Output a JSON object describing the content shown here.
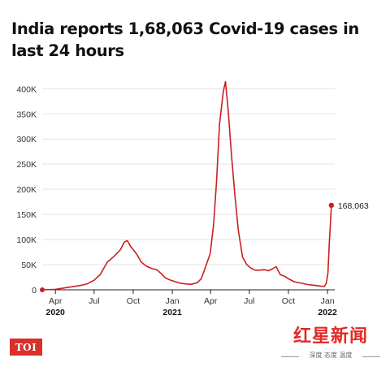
{
  "header": {
    "title": "India reports 1,68,063 Covid-19 cases in last 24 hours"
  },
  "chart_data": {
    "type": "line",
    "title": "India reports 1,68,063 Covid-19 cases in last 24 hours",
    "xlabel": "",
    "ylabel": "",
    "x_ticks": [
      {
        "label": "Apr",
        "year": "2020",
        "date": "2020-04-01"
      },
      {
        "label": "Jul",
        "year": "",
        "date": "2020-07-01"
      },
      {
        "label": "Oct",
        "year": "",
        "date": "2020-10-01"
      },
      {
        "label": "Jan",
        "year": "2021",
        "date": "2021-01-01"
      },
      {
        "label": "Apr",
        "year": "",
        "date": "2021-04-01"
      },
      {
        "label": "Jul",
        "year": "",
        "date": "2021-07-01"
      },
      {
        "label": "Oct",
        "year": "",
        "date": "2021-10-01"
      },
      {
        "label": "Jan",
        "year": "2022",
        "date": "2022-01-01"
      }
    ],
    "y_ticks": [
      {
        "value": 0,
        "label": "0"
      },
      {
        "value": 50000,
        "label": "50K"
      },
      {
        "value": 100000,
        "label": "100K"
      },
      {
        "value": 150000,
        "label": "150K"
      },
      {
        "value": 200000,
        "label": "200K"
      },
      {
        "value": 250000,
        "label": "250K"
      },
      {
        "value": 300000,
        "label": "300K"
      },
      {
        "value": 350000,
        "label": "350K"
      },
      {
        "value": 400000,
        "label": "400K"
      }
    ],
    "ylim": [
      0,
      415000
    ],
    "xlim": [
      "2020-03-01",
      "2022-01-18"
    ],
    "grid": "horizontal",
    "series": [
      {
        "color": "#c8201f",
        "points": [
          [
            "2020-03-01",
            0
          ],
          [
            "2020-04-01",
            1000
          ],
          [
            "2020-05-01",
            5000
          ],
          [
            "2020-06-01",
            9000
          ],
          [
            "2020-06-15",
            12000
          ],
          [
            "2020-07-01",
            19000
          ],
          [
            "2020-07-15",
            30000
          ],
          [
            "2020-08-01",
            55000
          ],
          [
            "2020-08-15",
            65000
          ],
          [
            "2020-09-01",
            80000
          ],
          [
            "2020-09-10",
            95000
          ],
          [
            "2020-09-17",
            97800
          ],
          [
            "2020-09-25",
            86000
          ],
          [
            "2020-10-01",
            80000
          ],
          [
            "2020-10-10",
            70000
          ],
          [
            "2020-10-20",
            55000
          ],
          [
            "2020-11-01",
            47000
          ],
          [
            "2020-11-15",
            42000
          ],
          [
            "2020-11-25",
            40000
          ],
          [
            "2020-12-05",
            33000
          ],
          [
            "2020-12-15",
            24000
          ],
          [
            "2020-12-25",
            20000
          ],
          [
            "2021-01-05",
            17000
          ],
          [
            "2021-01-20",
            13000
          ],
          [
            "2021-02-05",
            11500
          ],
          [
            "2021-02-15",
            11000
          ],
          [
            "2021-02-28",
            14000
          ],
          [
            "2021-03-10",
            22000
          ],
          [
            "2021-03-20",
            45000
          ],
          [
            "2021-03-31",
            72000
          ],
          [
            "2021-04-08",
            130000
          ],
          [
            "2021-04-15",
            215000
          ],
          [
            "2021-04-22",
            330000
          ],
          [
            "2021-05-01",
            395000
          ],
          [
            "2021-05-06",
            414000
          ],
          [
            "2021-05-12",
            360000
          ],
          [
            "2021-05-20",
            270000
          ],
          [
            "2021-05-28",
            190000
          ],
          [
            "2021-06-05",
            120000
          ],
          [
            "2021-06-15",
            65000
          ],
          [
            "2021-06-25",
            50000
          ],
          [
            "2021-07-05",
            43000
          ],
          [
            "2021-07-15",
            39000
          ],
          [
            "2021-07-25",
            39000
          ],
          [
            "2021-08-05",
            40000
          ],
          [
            "2021-08-15",
            38000
          ],
          [
            "2021-08-25",
            42000
          ],
          [
            "2021-09-02",
            46000
          ],
          [
            "2021-09-12",
            30000
          ],
          [
            "2021-09-22",
            27000
          ],
          [
            "2021-10-01",
            22000
          ],
          [
            "2021-10-15",
            16000
          ],
          [
            "2021-11-01",
            13000
          ],
          [
            "2021-11-15",
            10500
          ],
          [
            "2021-12-01",
            9000
          ],
          [
            "2021-12-15",
            7500
          ],
          [
            "2021-12-25",
            6800
          ],
          [
            "2021-12-29",
            13000
          ],
          [
            "2022-01-02",
            33000
          ],
          [
            "2022-01-05",
            90000
          ],
          [
            "2022-01-09",
            150000
          ],
          [
            "2022-01-10",
            168063
          ]
        ]
      }
    ],
    "annotations": [
      {
        "date": "2022-01-10",
        "value": 168063,
        "label": "168,063"
      }
    ]
  },
  "footer": {
    "logo_text": "TOI",
    "watermark_brand": "红星新闻",
    "watermark_slogan": "深度 态度 温度"
  },
  "colors": {
    "line": "#c8201f",
    "grid": "#e3e3e3",
    "axis": "#222222",
    "logo_bg": "#d9302a",
    "watermark": "#e12a26"
  }
}
